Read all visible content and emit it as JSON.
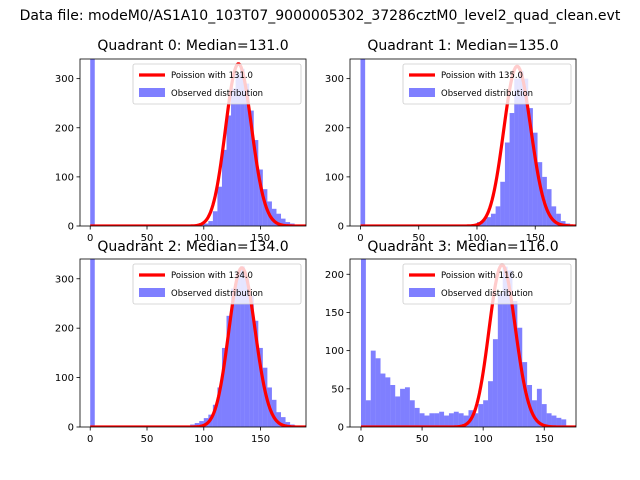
{
  "figure_title": "Data file: modeM0/AS1A10_103T07_9000005302_37286cztM0_level2_quad_clean.evt",
  "colors": {
    "bar": "#0000ff",
    "bar_alpha": 0.5,
    "fit": "#ff0000"
  },
  "chart_data": [
    {
      "type": "bar",
      "title": "Quadrant 0: Median=131.0",
      "legend": {
        "fit_label": "Poission with 131.0",
        "hist_label": "Observed distribution",
        "placement": "upper-right"
      },
      "xlim": [
        -9,
        190
      ],
      "ylim": [
        0,
        340
      ],
      "xticks": [
        0,
        50,
        100,
        150
      ],
      "yticks": [
        0,
        100,
        200,
        300
      ],
      "poisson_mean": 131.0,
      "poisson_norm": 330,
      "bin_width": 4,
      "bins": [
        [
          0,
          340
        ],
        [
          4,
          0
        ],
        [
          8,
          0
        ],
        [
          12,
          0
        ],
        [
          16,
          0
        ],
        [
          20,
          0
        ],
        [
          24,
          0
        ],
        [
          28,
          0
        ],
        [
          32,
          0
        ],
        [
          36,
          0
        ],
        [
          40,
          0
        ],
        [
          44,
          0
        ],
        [
          48,
          0
        ],
        [
          52,
          0
        ],
        [
          56,
          0
        ],
        [
          60,
          0
        ],
        [
          64,
          0
        ],
        [
          68,
          0
        ],
        [
          72,
          0
        ],
        [
          76,
          0
        ],
        [
          80,
          0
        ],
        [
          84,
          1
        ],
        [
          88,
          1
        ],
        [
          92,
          2
        ],
        [
          96,
          3
        ],
        [
          100,
          5
        ],
        [
          104,
          10
        ],
        [
          108,
          30
        ],
        [
          112,
          80
        ],
        [
          116,
          155
        ],
        [
          120,
          225
        ],
        [
          124,
          280
        ],
        [
          128,
          310
        ],
        [
          132,
          320
        ],
        [
          136,
          290
        ],
        [
          140,
          235
        ],
        [
          144,
          175
        ],
        [
          148,
          115
        ],
        [
          152,
          75
        ],
        [
          156,
          50
        ],
        [
          160,
          35
        ],
        [
          164,
          25
        ],
        [
          168,
          15
        ],
        [
          172,
          8
        ],
        [
          176,
          5
        ]
      ]
    },
    {
      "type": "bar",
      "title": "Quadrant 1: Median=135.0",
      "legend": {
        "fit_label": "Poission with 135.0",
        "hist_label": "Observed distribution",
        "placement": "upper-right"
      },
      "xlim": [
        -9,
        185
      ],
      "ylim": [
        0,
        340
      ],
      "xticks": [
        0,
        50,
        100,
        150
      ],
      "yticks": [
        0,
        100,
        200,
        300
      ],
      "poisson_mean": 135.0,
      "poisson_norm": 325,
      "bin_width": 4,
      "bins": [
        [
          0,
          340
        ],
        [
          4,
          0
        ],
        [
          8,
          0
        ],
        [
          12,
          0
        ],
        [
          16,
          0
        ],
        [
          20,
          0
        ],
        [
          24,
          0
        ],
        [
          28,
          0
        ],
        [
          32,
          0
        ],
        [
          36,
          0
        ],
        [
          40,
          0
        ],
        [
          44,
          0
        ],
        [
          48,
          0
        ],
        [
          52,
          0
        ],
        [
          56,
          0
        ],
        [
          60,
          0
        ],
        [
          64,
          0
        ],
        [
          68,
          0
        ],
        [
          72,
          0
        ],
        [
          76,
          0
        ],
        [
          80,
          0
        ],
        [
          84,
          1
        ],
        [
          88,
          2
        ],
        [
          92,
          3
        ],
        [
          96,
          4
        ],
        [
          100,
          8
        ],
        [
          104,
          12
        ],
        [
          108,
          18
        ],
        [
          112,
          25
        ],
        [
          116,
          40
        ],
        [
          120,
          90
        ],
        [
          124,
          170
        ],
        [
          128,
          230
        ],
        [
          132,
          300
        ],
        [
          136,
          315
        ],
        [
          140,
          300
        ],
        [
          144,
          240
        ],
        [
          148,
          190
        ],
        [
          152,
          130
        ],
        [
          156,
          100
        ],
        [
          160,
          75
        ],
        [
          164,
          40
        ],
        [
          168,
          25
        ],
        [
          172,
          10
        ],
        [
          176,
          5
        ]
      ]
    },
    {
      "type": "bar",
      "title": "Quadrant 2: Median=134.0",
      "legend": {
        "fit_label": "Poission with 134.0",
        "hist_label": "Observed distribution",
        "placement": "upper-right"
      },
      "xlim": [
        -9,
        190
      ],
      "ylim": [
        0,
        340
      ],
      "xticks": [
        0,
        50,
        100,
        150
      ],
      "yticks": [
        0,
        100,
        200,
        300
      ],
      "poisson_mean": 134.0,
      "poisson_norm": 322,
      "bin_width": 4,
      "bins": [
        [
          0,
          340
        ],
        [
          4,
          0
        ],
        [
          8,
          0
        ],
        [
          12,
          0
        ],
        [
          16,
          0
        ],
        [
          20,
          0
        ],
        [
          24,
          0
        ],
        [
          28,
          0
        ],
        [
          32,
          0
        ],
        [
          36,
          0
        ],
        [
          40,
          0
        ],
        [
          44,
          0
        ],
        [
          48,
          0
        ],
        [
          52,
          0
        ],
        [
          56,
          0
        ],
        [
          60,
          0
        ],
        [
          64,
          0
        ],
        [
          68,
          0
        ],
        [
          72,
          0
        ],
        [
          76,
          1
        ],
        [
          80,
          2
        ],
        [
          84,
          3
        ],
        [
          88,
          5
        ],
        [
          92,
          8
        ],
        [
          96,
          12
        ],
        [
          100,
          18
        ],
        [
          104,
          25
        ],
        [
          108,
          45
        ],
        [
          112,
          80
        ],
        [
          116,
          160
        ],
        [
          120,
          225
        ],
        [
          124,
          280
        ],
        [
          128,
          310
        ],
        [
          132,
          325
        ],
        [
          136,
          300
        ],
        [
          140,
          265
        ],
        [
          144,
          215
        ],
        [
          148,
          160
        ],
        [
          152,
          120
        ],
        [
          156,
          80
        ],
        [
          160,
          55
        ],
        [
          164,
          30
        ],
        [
          168,
          20
        ],
        [
          172,
          10
        ],
        [
          176,
          5
        ]
      ]
    },
    {
      "type": "bar",
      "title": "Quadrant 3: Median=116.0",
      "legend": {
        "fit_label": "Poission with 116.0",
        "hist_label": "Observed distribution",
        "placement": "upper-right"
      },
      "xlim": [
        -9,
        176
      ],
      "ylim": [
        0,
        220
      ],
      "xticks": [
        0,
        50,
        100,
        150
      ],
      "yticks": [
        0,
        50,
        100,
        150,
        200
      ],
      "poisson_mean": 116.0,
      "poisson_norm": 212,
      "bin_width": 4,
      "bins": [
        [
          0,
          220
        ],
        [
          4,
          35
        ],
        [
          8,
          100
        ],
        [
          12,
          90
        ],
        [
          16,
          70
        ],
        [
          20,
          65
        ],
        [
          24,
          55
        ],
        [
          28,
          40
        ],
        [
          32,
          50
        ],
        [
          36,
          52
        ],
        [
          40,
          35
        ],
        [
          44,
          25
        ],
        [
          48,
          18
        ],
        [
          52,
          15
        ],
        [
          56,
          18
        ],
        [
          60,
          18
        ],
        [
          64,
          20
        ],
        [
          68,
          15
        ],
        [
          72,
          18
        ],
        [
          76,
          20
        ],
        [
          80,
          18
        ],
        [
          84,
          15
        ],
        [
          88,
          22
        ],
        [
          92,
          18
        ],
        [
          96,
          30
        ],
        [
          100,
          35
        ],
        [
          104,
          60
        ],
        [
          108,
          115
        ],
        [
          112,
          175
        ],
        [
          116,
          210
        ],
        [
          120,
          205
        ],
        [
          124,
          165
        ],
        [
          128,
          130
        ],
        [
          132,
          85
        ],
        [
          136,
          55
        ],
        [
          140,
          35
        ],
        [
          144,
          50
        ],
        [
          148,
          30
        ],
        [
          152,
          18
        ],
        [
          156,
          15
        ],
        [
          160,
          12
        ],
        [
          164,
          10
        ]
      ]
    }
  ]
}
